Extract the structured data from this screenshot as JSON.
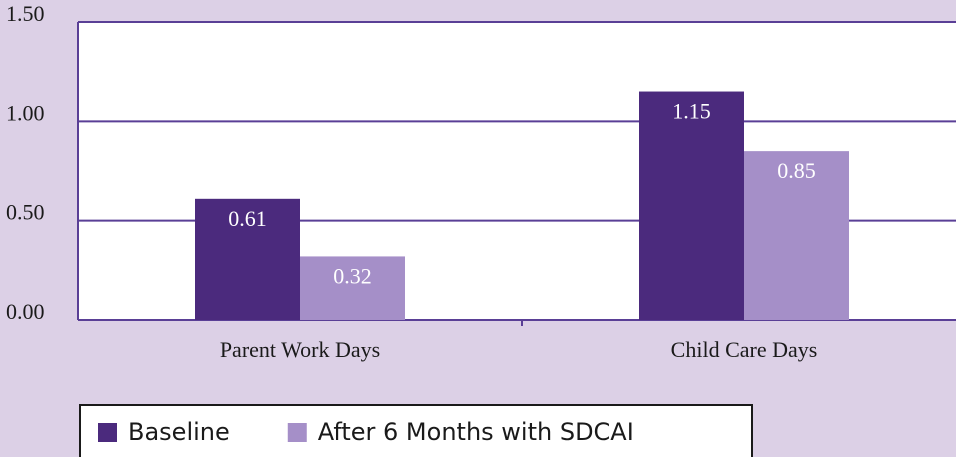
{
  "chart_data": {
    "type": "bar",
    "categories": [
      "Parent Work Days",
      "Child Care Days"
    ],
    "series": [
      {
        "name": "Baseline",
        "color": "#4b2a7d",
        "values": [
          0.61,
          1.15
        ]
      },
      {
        "name": "After 6 Months with SDCAI",
        "color": "#a58fc8",
        "values": [
          0.32,
          0.85
        ]
      }
    ],
    "ylim": [
      0,
      1.5
    ],
    "yticks": [
      {
        "value": 0,
        "label": "0.00"
      },
      {
        "value": 0.5,
        "label": "0.50"
      },
      {
        "value": 1,
        "label": "1.00"
      },
      {
        "value": 1.5,
        "label": "1.50"
      }
    ],
    "grid": true
  }
}
